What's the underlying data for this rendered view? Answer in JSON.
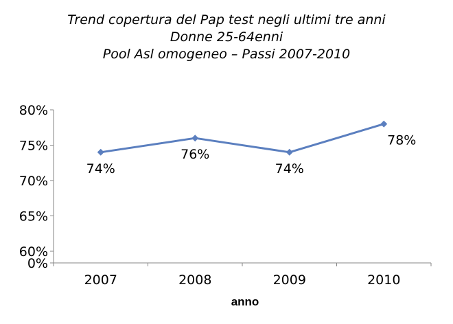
{
  "chart_data": {
    "type": "line",
    "title_lines": [
      "Trend copertura del Pap test negli ultimi tre anni",
      "Donne 25-64enni",
      "Pool Asl omogeneo – Passi 2007-2010"
    ],
    "xlabel": "anno",
    "ylabel": "",
    "categories": [
      "2007",
      "2008",
      "2009",
      "2010"
    ],
    "series": [
      {
        "values": [
          74,
          76,
          74,
          78
        ],
        "labels": [
          "74%",
          "76%",
          "74%",
          "78%"
        ],
        "color": "#5b7fbf"
      }
    ],
    "y_ticks": [
      {
        "value": 0,
        "label": "0%"
      },
      {
        "value": 60,
        "label": "60%"
      },
      {
        "value": 65,
        "label": "65%"
      },
      {
        "value": 70,
        "label": "70%"
      },
      {
        "value": 75,
        "label": "75%"
      },
      {
        "value": 80,
        "label": "80%"
      }
    ],
    "ylim": [
      60,
      80
    ],
    "axis_break": true,
    "grid": false,
    "legend": "none"
  }
}
